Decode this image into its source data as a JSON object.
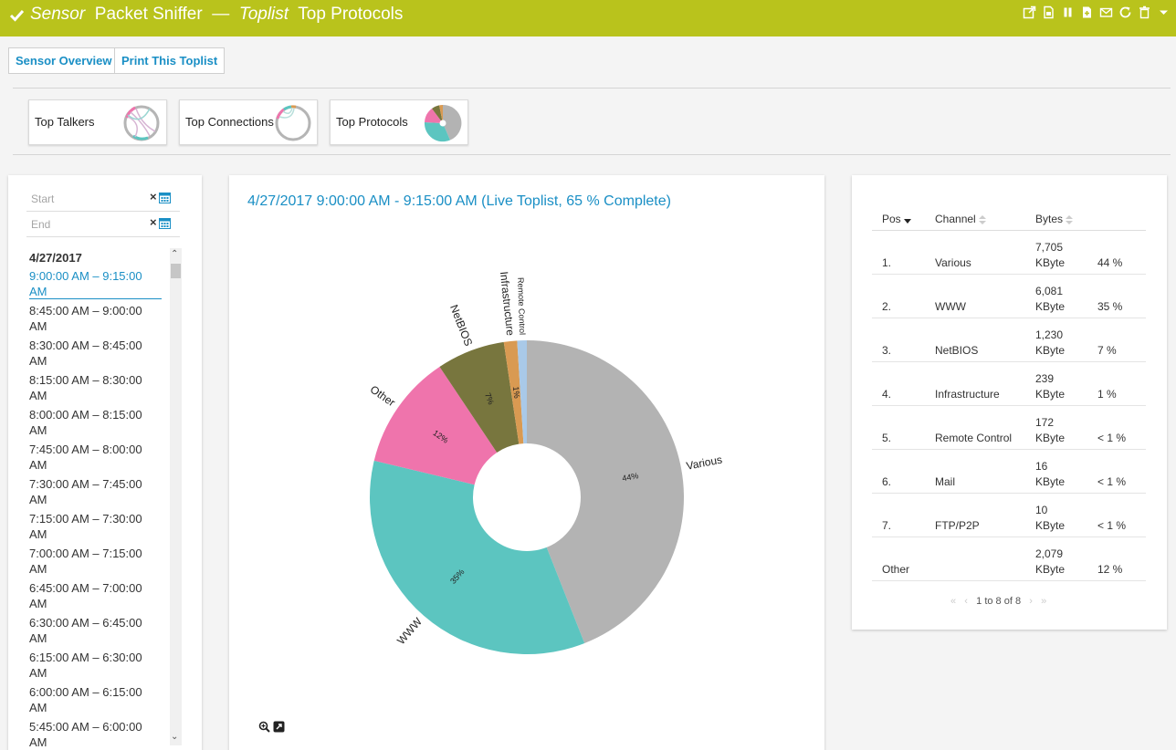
{
  "header": {
    "sensor_label": "Sensor",
    "sensor_name": "Packet Sniffer",
    "dash": "—",
    "toplist_label": "Toplist",
    "toplist_name": "Top Protocols"
  },
  "actions": {
    "sensor_overview": "Sensor Overview",
    "print_toplist": "Print This Toplist"
  },
  "toplists": [
    {
      "label": "Top Talkers"
    },
    {
      "label": "Top Connections"
    },
    {
      "label": "Top Protocols"
    }
  ],
  "range": {
    "start_placeholder": "Start",
    "end_placeholder": "End"
  },
  "date_group": "4/27/2017",
  "time_ranges": [
    {
      "line1": "9:00:00 AM – 9:15:00",
      "line2": "AM"
    },
    {
      "line1": "8:45:00 AM – 9:00:00",
      "line2": "AM"
    },
    {
      "line1": "8:30:00 AM – 8:45:00",
      "line2": "AM"
    },
    {
      "line1": "8:15:00 AM – 8:30:00",
      "line2": "AM"
    },
    {
      "line1": "8:00:00 AM – 8:15:00",
      "line2": "AM"
    },
    {
      "line1": "7:45:00 AM – 8:00:00",
      "line2": "AM"
    },
    {
      "line1": "7:30:00 AM – 7:45:00",
      "line2": "AM"
    },
    {
      "line1": "7:15:00 AM – 7:30:00",
      "line2": "AM"
    },
    {
      "line1": "7:00:00 AM – 7:15:00",
      "line2": "AM"
    },
    {
      "line1": "6:45:00 AM – 7:00:00",
      "line2": "AM"
    },
    {
      "line1": "6:30:00 AM – 6:45:00",
      "line2": "AM"
    },
    {
      "line1": "6:15:00 AM – 6:30:00",
      "line2": "AM"
    },
    {
      "line1": "6:00:00 AM – 6:15:00",
      "line2": "AM"
    },
    {
      "line1": "5:45:00 AM – 6:00:00",
      "line2": "AM"
    }
  ],
  "chart_title": "4/27/2017 9:00:00 AM - 9:15:00 AM (Live Toplist, 65 % Complete)",
  "chart_data": {
    "type": "pie",
    "slices": [
      {
        "label": "Various",
        "value": 7705,
        "pct_label": "44%",
        "color": "#b3b3b3"
      },
      {
        "label": "WWW",
        "value": 6081,
        "pct_label": "35%",
        "color": "#5cc5c0"
      },
      {
        "label": "Other",
        "value": 2079,
        "pct_label": "12%",
        "color": "#ef74ac"
      },
      {
        "label": "NetBIOS",
        "value": 1230,
        "pct_label": "7%",
        "color": "#78763e"
      },
      {
        "label": "Infrastructure",
        "value": 239,
        "pct_label": "1%",
        "color": "#d99a52"
      },
      {
        "label": "Remote Control",
        "value": 172,
        "pct_label": "",
        "color": "#a9c9e8"
      }
    ]
  },
  "table": {
    "headers": {
      "pos": "Pos",
      "channel": "Channel",
      "bytes": "Bytes"
    },
    "rows": [
      {
        "pos": "1.",
        "channel": "Various",
        "bytes": "7,705",
        "unit": "KByte",
        "pct": "44 %"
      },
      {
        "pos": "2.",
        "channel": "WWW",
        "bytes": "6,081",
        "unit": "KByte",
        "pct": "35 %"
      },
      {
        "pos": "3.",
        "channel": "NetBIOS",
        "bytes": "1,230",
        "unit": "KByte",
        "pct": "7 %"
      },
      {
        "pos": "4.",
        "channel": "Infrastructure",
        "bytes": "239",
        "unit": "KByte",
        "pct": "1 %"
      },
      {
        "pos": "5.",
        "channel": "Remote Control",
        "bytes": "172",
        "unit": "KByte",
        "pct": "< 1 %"
      },
      {
        "pos": "6.",
        "channel": "Mail",
        "bytes": "16",
        "unit": "KByte",
        "pct": "< 1 %"
      },
      {
        "pos": "7.",
        "channel": "FTP/P2P",
        "bytes": "10",
        "unit": "KByte",
        "pct": "< 1 %"
      },
      {
        "pos": "Other",
        "channel": "",
        "bytes": "2,079",
        "unit": "KByte",
        "pct": "12 %"
      }
    ],
    "pager": "1 to 8 of 8"
  }
}
